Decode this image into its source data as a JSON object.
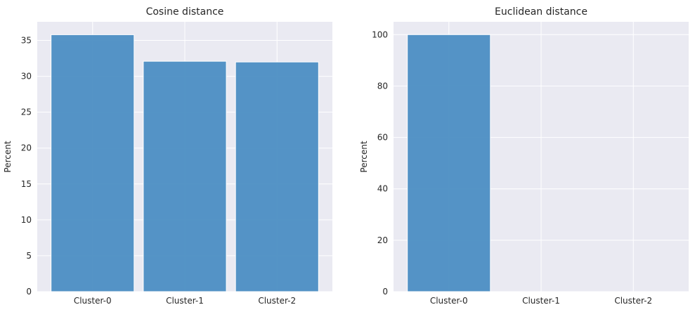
{
  "colors": {
    "bar": "#4c8ec3",
    "bar_edge": "#ffffff",
    "axes_background": "#eaeaf2",
    "grid": "#ffffff",
    "text": "#262626"
  },
  "chart_data": [
    {
      "type": "bar",
      "title": "Cosine distance",
      "xlabel": "",
      "ylabel": "Percent",
      "categories": [
        "Cluster-0",
        "Cluster-1",
        "Cluster-2"
      ],
      "values": [
        35.8,
        32.1,
        32.0
      ],
      "ylim": [
        0,
        37.6
      ],
      "yticks": [
        0,
        5,
        10,
        15,
        20,
        25,
        30,
        35
      ],
      "grid": true
    },
    {
      "type": "bar",
      "title": "Euclidean distance",
      "xlabel": "",
      "ylabel": "Percent",
      "categories": [
        "Cluster-0",
        "Cluster-1",
        "Cluster-2"
      ],
      "values": [
        100,
        0,
        0
      ],
      "ylim": [
        0,
        105
      ],
      "yticks": [
        0,
        20,
        40,
        60,
        80,
        100
      ],
      "grid": true
    }
  ]
}
